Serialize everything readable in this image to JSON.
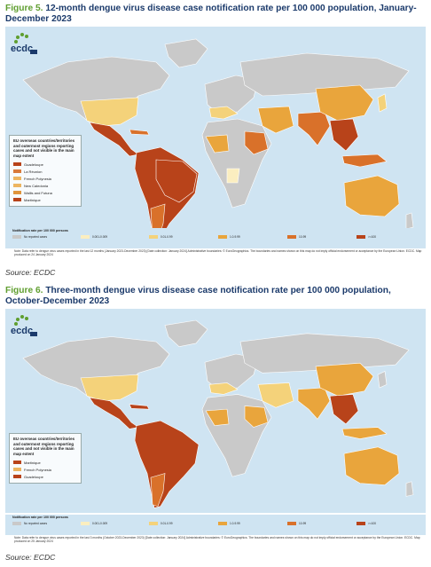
{
  "figures": [
    {
      "number": "Figure 5.",
      "title": "12-month dengue virus disease case notification rate per 100 000 population, January-December 2023",
      "legend_title": "EU overseas countries/territories and outermost regions reporting cases and not visible in the main map extent",
      "legend_items": [
        {
          "label": "Guadeloupe",
          "color": "#b8431a"
        },
        {
          "label": "La Réunion",
          "color": "#d97a3a"
        },
        {
          "label": "French Polynesia",
          "color": "#edb560"
        },
        {
          "label": "New Caledonia",
          "color": "#edb560"
        },
        {
          "label": "Wallis and Futuna",
          "color": "#e0953c"
        },
        {
          "label": "Martinique",
          "color": "#b8431a"
        }
      ],
      "note": "Note: Data refer to dengue virus cases reported in the last 12 months (January 2023-December 2023) [Date collection: January 2024] Administrative boundaries: © EuroGeographics. The boundaries and names shown on this map do not imply official endorsement or acceptance by the European Union. ECDC. Map produced on 24 January 2024",
      "source": "Source: ECDC"
    },
    {
      "number": "Figure 6.",
      "title": "Three-month dengue virus disease case notification rate per 100 000 population, October-December 2023",
      "legend_title": "EU overseas countries/territories and outermost regions reporting cases and not visible in the main map extent",
      "legend_items": [
        {
          "label": "Martinique",
          "color": "#b8431a"
        },
        {
          "label": "French Polynesia",
          "color": "#edb560"
        },
        {
          "label": "Guadeloupe",
          "color": "#b8431a"
        }
      ],
      "note": "Note: Data refer to dengue virus cases reported in the last 3 months (October 2023-December 2023) [Date collection: January 2024] Administrative boundaries: © EuroGeographics. The boundaries and names shown on this map do not imply official endorsement or acceptance by the European Union. ECDC. Map produced on 25 January 2024",
      "source": "Source: ECDC"
    }
  ],
  "rate_legend": {
    "title": "Notification rate per 100 000 persons",
    "classes": [
      {
        "label": "No reported cases",
        "color": "#c9c9c9"
      },
      {
        "label": "0.001-0.009",
        "color": "#fbeec0"
      },
      {
        "label": "0.01-0.99",
        "color": "#f4d27a"
      },
      {
        "label": "1.0-9.99",
        "color": "#e9a53c"
      },
      {
        "label": "10-99",
        "color": "#d9712a"
      },
      {
        "label": ">=100",
        "color": "#b8431a"
      }
    ]
  },
  "logo_text": "ecdc"
}
